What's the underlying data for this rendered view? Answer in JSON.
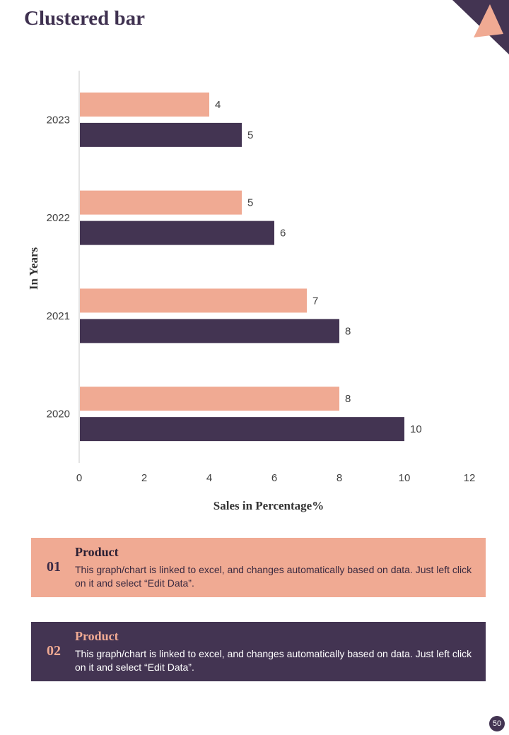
{
  "page": {
    "title": "Clustered bar",
    "page_number": "50"
  },
  "colors": {
    "accent": "#f0aa93",
    "dark": "#433452"
  },
  "chart_data": {
    "type": "bar",
    "orientation": "horizontal",
    "title": "",
    "xlabel": "Sales in Percentage%",
    "ylabel": "In Years",
    "xlim": [
      0,
      12
    ],
    "x_ticks": [
      0,
      2,
      4,
      6,
      8,
      10,
      12
    ],
    "categories": [
      "2023",
      "2022",
      "2021",
      "2020"
    ],
    "series": [
      {
        "name": "Product 01",
        "color": "#f0aa93",
        "values": [
          4,
          5,
          7,
          8
        ]
      },
      {
        "name": "Product 02",
        "color": "#433452",
        "values": [
          5,
          6,
          8,
          10
        ]
      }
    ]
  },
  "panels": [
    {
      "number": "01",
      "heading": "Product",
      "text": "This graph/chart is linked to excel, and changes automatically based on data. Just left click on it and select “Edit Data”."
    },
    {
      "number": "02",
      "heading": "Product",
      "text": "This graph/chart is linked to excel, and changes automatically based on data. Just left click on it and select “Edit Data”."
    }
  ]
}
